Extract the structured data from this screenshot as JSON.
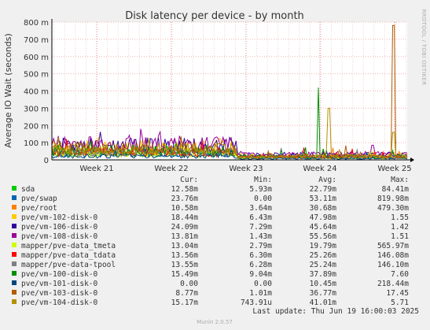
{
  "chart_data": {
    "type": "line",
    "title": "Disk latency per device - by month",
    "ylabel": "Average IO Wait (seconds)",
    "xlabel": "",
    "ylim": [
      0,
      0.8
    ],
    "y_ticks": [
      0,
      0.1,
      0.2,
      0.3,
      0.4,
      0.5,
      0.6,
      0.7,
      0.8
    ],
    "y_tick_labels": [
      "0",
      "100 m",
      "200 m",
      "300 m",
      "400 m",
      "500 m",
      "600 m",
      "700 m",
      "800 m"
    ],
    "x_ticks": [
      "Week 21",
      "Week 22",
      "Week 23",
      "Week 24",
      "Week 25"
    ],
    "grid": true,
    "side_label": "RRDTOOL / TOBI OETIKER",
    "columns": [
      "Cur:",
      "Min:",
      "Avg:",
      "Max:"
    ],
    "series": [
      {
        "name": "sda",
        "color": "#00cc00",
        "cur": "12.58m",
        "min": "5.93m",
        "avg": "22.79m",
        "max": "84.41m"
      },
      {
        "name": "pve/swap",
        "color": "#0066b3",
        "cur": "23.76m",
        "min": "0.00",
        "avg": "53.11m",
        "max": "819.98m"
      },
      {
        "name": "pve/root",
        "color": "#ff8000",
        "cur": "10.58m",
        "min": "3.64m",
        "avg": "30.68m",
        "max": "479.30m"
      },
      {
        "name": "pve/vm-102-disk-0",
        "color": "#ffcc00",
        "cur": "18.44m",
        "min": "6.43m",
        "avg": "47.98m",
        "max": "1.55"
      },
      {
        "name": "pve/vm-106-disk-0",
        "color": "#330099",
        "cur": "24.09m",
        "min": "7.29m",
        "avg": "45.64m",
        "max": "1.42"
      },
      {
        "name": "pve/vm-108-disk-0",
        "color": "#990099",
        "cur": "13.81m",
        "min": "1.43m",
        "avg": "55.56m",
        "max": "1.51"
      },
      {
        "name": "mapper/pve-data_tmeta",
        "color": "#ccff00",
        "cur": "13.04m",
        "min": "2.79m",
        "avg": "19.79m",
        "max": "565.97m"
      },
      {
        "name": "mapper/pve-data_tdata",
        "color": "#ff0000",
        "cur": "13.56m",
        "min": "6.30m",
        "avg": "25.26m",
        "max": "146.08m"
      },
      {
        "name": "mapper/pve-data-tpool",
        "color": "#808080",
        "cur": "13.55m",
        "min": "6.28m",
        "avg": "25.24m",
        "max": "146.10m"
      },
      {
        "name": "pve/vm-100-disk-0",
        "color": "#008f00",
        "cur": "15.49m",
        "min": "9.04m",
        "avg": "37.89m",
        "max": "7.60"
      },
      {
        "name": "pve/vm-101-disk-0",
        "color": "#00487d",
        "cur": "0.00",
        "min": "0.00",
        "avg": "10.45m",
        "max": "218.44m"
      },
      {
        "name": "pve/vm-103-disk-0",
        "color": "#b35a00",
        "cur": "8.77m",
        "min": "1.01m",
        "avg": "36.77m",
        "max": "17.45"
      },
      {
        "name": "pve/vm-104-disk-0",
        "color": "#b38f00",
        "cur": "15.17m",
        "min": "743.91u",
        "avg": "41.01m",
        "max": "5.71"
      }
    ],
    "last_update": "Last update: Thu Jun 19 16:00:03 2025",
    "footer": "Munin 2.0.57"
  }
}
